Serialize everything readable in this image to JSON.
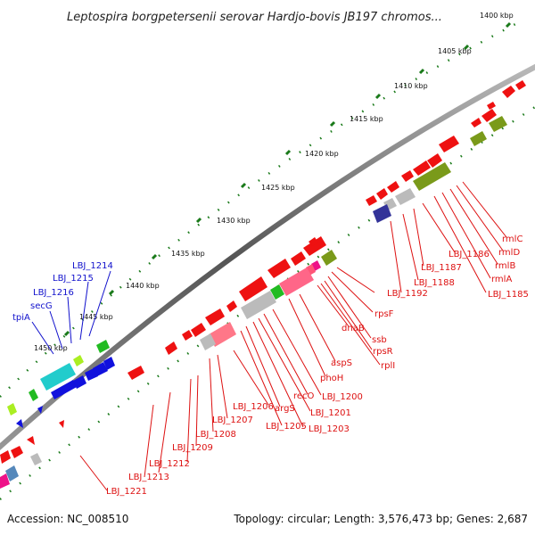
{
  "title": "Leptospira borgpetersenii serovar Hardjo-bovis JB197 chromos...",
  "accession": "Accession: NC_008510",
  "summary": "Topology: circular; Length: 3,576,473 bp; Genes: 2,687",
  "ticks": [
    "1400 kbp",
    "1405 kbp",
    "1410 kbp",
    "1415 kbp",
    "1420 kbp",
    "1425 kbp",
    "1430 kbp",
    "1435 kbp",
    "1440 kbp",
    "1445 kbp",
    "1450 kbp"
  ],
  "colors": {
    "red": "#ee1111",
    "blue": "#1111dd",
    "olive": "#7a9a1a",
    "cyan": "#22cccc",
    "green": "#22bb22",
    "gray": "#bbbbbb",
    "pink": "#ff5577",
    "magenta": "#ee1188",
    "navy": "#333399",
    "lime": "#aaee22",
    "steel": "#5588bb",
    "label_red": "#dd1111",
    "label_blue": "#1111cc"
  },
  "labels_blue": [
    "LBJ_1214",
    "LBJ_1215",
    "LBJ_1216",
    "secG",
    "tpiA"
  ],
  "labels_red": [
    "rmlC",
    "rmlD",
    "rmlB",
    "rmlA",
    "LBJ_1185",
    "LBJ_1186",
    "LBJ_1187",
    "LBJ_1188",
    "LBJ_1192",
    "rpsF",
    "ssb",
    "rpsR",
    "rplI",
    "dnaB",
    "aspS",
    "phoH",
    "LBJ_1200",
    "recO",
    "LBJ_1201",
    "LBJ_1203",
    "argS",
    "LBJ_1205",
    "LBJ_1206",
    "LBJ_1207",
    "LBJ_1208",
    "LBJ_1209",
    "LBJ_1212",
    "LBJ_1213",
    "LBJ_1221"
  ]
}
